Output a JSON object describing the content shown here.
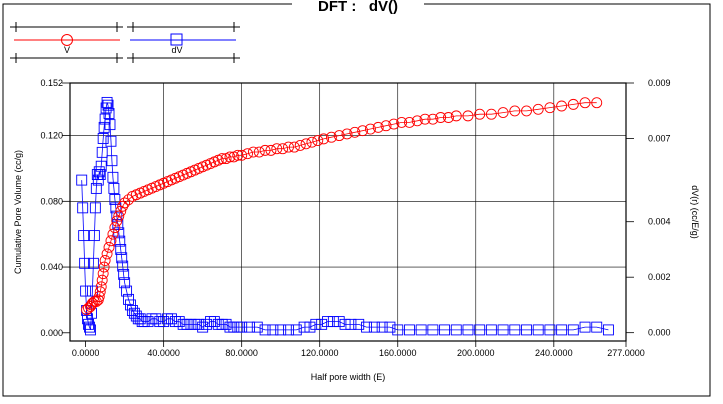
{
  "chart_data": {
    "type": "scatter",
    "title": "DFT :   dV()",
    "xlabel": "Half pore width (E)",
    "ylabel": "Cumulative Pore Volume (cc/g)",
    "y2label": "dV(r) (cc/E/g)",
    "xlim": [
      -8,
      277
    ],
    "ylim": [
      -0.005,
      0.152
    ],
    "y2lim": [
      -0.0003,
      0.009
    ],
    "x_ticks": [
      "0.0000",
      "40.0000",
      "80.0000",
      "120.0000",
      "160.0000",
      "200.0000",
      "240.0000",
      "277.0000"
    ],
    "x_tick_values": [
      0,
      40,
      80,
      120,
      160,
      200,
      240,
      277
    ],
    "y_ticks": [
      "0.000",
      "0.040",
      "0.080",
      "0.120",
      "0.152"
    ],
    "y_tick_values": [
      0,
      0.04,
      0.08,
      0.12,
      0.152
    ],
    "y2_ticks": [
      "0.000",
      "0.002",
      "0.004",
      "0.007",
      "0.009"
    ],
    "y2_tick_values": [
      0,
      0.002,
      0.004,
      0.007,
      0.009
    ],
    "grid": true,
    "legend_position": "top-left",
    "series": [
      {
        "name": "V",
        "color": "#ff0000",
        "marker": "circle",
        "axis": "left",
        "points": [
          [
            0.5,
            0.014
          ],
          [
            1.5,
            0.015
          ],
          [
            2.5,
            0.016
          ],
          [
            3,
            0.017
          ],
          [
            3.5,
            0.018
          ],
          [
            4.5,
            0.019
          ],
          [
            5.5,
            0.019
          ],
          [
            6.5,
            0.02
          ],
          [
            7,
            0.022
          ],
          [
            7.5,
            0.025
          ],
          [
            8,
            0.028
          ],
          [
            8.5,
            0.032
          ],
          [
            9,
            0.036
          ],
          [
            9.5,
            0.04
          ],
          [
            10,
            0.044
          ],
          [
            11,
            0.048
          ],
          [
            12,
            0.052
          ],
          [
            13,
            0.056
          ],
          [
            14,
            0.06
          ],
          [
            15,
            0.064
          ],
          [
            16,
            0.068
          ],
          [
            17,
            0.071
          ],
          [
            18,
            0.074
          ],
          [
            19,
            0.077
          ],
          [
            20,
            0.079
          ],
          [
            22,
            0.081
          ],
          [
            24,
            0.083
          ],
          [
            26,
            0.084
          ],
          [
            28,
            0.085
          ],
          [
            30,
            0.086
          ],
          [
            32,
            0.087
          ],
          [
            34,
            0.088
          ],
          [
            36,
            0.089
          ],
          [
            38,
            0.09
          ],
          [
            40,
            0.091
          ],
          [
            42,
            0.092
          ],
          [
            44,
            0.093
          ],
          [
            46,
            0.094
          ],
          [
            48,
            0.095
          ],
          [
            50,
            0.096
          ],
          [
            52,
            0.097
          ],
          [
            54,
            0.098
          ],
          [
            56,
            0.099
          ],
          [
            58,
            0.1
          ],
          [
            60,
            0.101
          ],
          [
            62,
            0.102
          ],
          [
            64,
            0.103
          ],
          [
            66,
            0.104
          ],
          [
            68,
            0.105
          ],
          [
            70,
            0.106
          ],
          [
            72,
            0.106
          ],
          [
            74,
            0.107
          ],
          [
            76,
            0.107
          ],
          [
            78,
            0.108
          ],
          [
            80,
            0.108
          ],
          [
            83,
            0.109
          ],
          [
            86,
            0.11
          ],
          [
            89,
            0.11
          ],
          [
            92,
            0.111
          ],
          [
            95,
            0.111
          ],
          [
            98,
            0.112
          ],
          [
            101,
            0.112
          ],
          [
            104,
            0.113
          ],
          [
            107,
            0.113
          ],
          [
            110,
            0.114
          ],
          [
            113,
            0.115
          ],
          [
            116,
            0.116
          ],
          [
            119,
            0.117
          ],
          [
            122,
            0.118
          ],
          [
            126,
            0.119
          ],
          [
            130,
            0.12
          ],
          [
            134,
            0.121
          ],
          [
            138,
            0.122
          ],
          [
            142,
            0.123
          ],
          [
            146,
            0.124
          ],
          [
            150,
            0.125
          ],
          [
            154,
            0.126
          ],
          [
            158,
            0.127
          ],
          [
            162,
            0.128
          ],
          [
            166,
            0.128
          ],
          [
            170,
            0.129
          ],
          [
            174,
            0.13
          ],
          [
            178,
            0.13
          ],
          [
            182,
            0.131
          ],
          [
            186,
            0.131
          ],
          [
            190,
            0.132
          ],
          [
            196,
            0.132
          ],
          [
            202,
            0.133
          ],
          [
            208,
            0.133
          ],
          [
            214,
            0.134
          ],
          [
            220,
            0.135
          ],
          [
            226,
            0.135
          ],
          [
            232,
            0.136
          ],
          [
            238,
            0.137
          ],
          [
            244,
            0.138
          ],
          [
            250,
            0.139
          ],
          [
            256,
            0.14
          ],
          [
            262,
            0.14
          ]
        ]
      },
      {
        "name": "dV",
        "color": "#0000ff",
        "marker": "square",
        "axis": "right",
        "points": [
          [
            -2,
            0.0055
          ],
          [
            -1.5,
            0.0045
          ],
          [
            -1,
            0.0035
          ],
          [
            -0.5,
            0.0025
          ],
          [
            0,
            0.0015
          ],
          [
            0.5,
            0.0008
          ],
          [
            1,
            0.0005
          ],
          [
            1.5,
            0.0003
          ],
          [
            2,
            0.0002
          ],
          [
            2.5,
            0.0001
          ],
          [
            3,
            0.0007
          ],
          [
            3.5,
            0.0015
          ],
          [
            4,
            0.0025
          ],
          [
            4.5,
            0.0035
          ],
          [
            5,
            0.0045
          ],
          [
            5.5,
            0.0052
          ],
          [
            6,
            0.0057
          ],
          [
            6.5,
            0.0055
          ],
          [
            7,
            0.0058
          ],
          [
            7.5,
            0.0057
          ],
          [
            8,
            0.006
          ],
          [
            8.5,
            0.0065
          ],
          [
            9,
            0.007
          ],
          [
            9.5,
            0.0074
          ],
          [
            10,
            0.0077
          ],
          [
            10.5,
            0.0081
          ],
          [
            11,
            0.0083
          ],
          [
            11.5,
            0.0082
          ],
          [
            12,
            0.0079
          ],
          [
            12.5,
            0.0075
          ],
          [
            13,
            0.0069
          ],
          [
            13.5,
            0.0062
          ],
          [
            14,
            0.0056
          ],
          [
            14.5,
            0.0052
          ],
          [
            15,
            0.0048
          ],
          [
            15.5,
            0.0045
          ],
          [
            16,
            0.0042
          ],
          [
            16.5,
            0.0039
          ],
          [
            17,
            0.0036
          ],
          [
            17.5,
            0.0033
          ],
          [
            18,
            0.003
          ],
          [
            18.5,
            0.0027
          ],
          [
            19,
            0.0024
          ],
          [
            19.5,
            0.0021
          ],
          [
            20,
            0.0018
          ],
          [
            21,
            0.0015
          ],
          [
            22,
            0.0012
          ],
          [
            23,
            0.001
          ],
          [
            24,
            0.0008
          ],
          [
            25,
            0.0007
          ],
          [
            26,
            0.0006
          ],
          [
            27,
            0.0005
          ],
          [
            28,
            0.0005
          ],
          [
            29,
            0.0004
          ],
          [
            30,
            0.0004
          ],
          [
            32,
            0.0004
          ],
          [
            34,
            0.0005
          ],
          [
            36,
            0.0005
          ],
          [
            38,
            0.0004
          ],
          [
            40,
            0.0004
          ],
          [
            42,
            0.0005
          ],
          [
            44,
            0.0005
          ],
          [
            46,
            0.0004
          ],
          [
            48,
            0.0004
          ],
          [
            50,
            0.0003
          ],
          [
            52,
            0.0003
          ],
          [
            54,
            0.0003
          ],
          [
            56,
            0.0003
          ],
          [
            58,
            0.0003
          ],
          [
            60,
            0.0002
          ],
          [
            62,
            0.0003
          ],
          [
            64,
            0.0004
          ],
          [
            66,
            0.0004
          ],
          [
            68,
            0.0003
          ],
          [
            70,
            0.0003
          ],
          [
            72,
            0.0003
          ],
          [
            74,
            0.0002
          ],
          [
            76,
            0.0002
          ],
          [
            78,
            0.0002
          ],
          [
            80,
            0.0002
          ],
          [
            84,
            0.0002
          ],
          [
            88,
            0.0002
          ],
          [
            92,
            0.0001
          ],
          [
            96,
            0.0001
          ],
          [
            100,
            0.0001
          ],
          [
            104,
            0.0001
          ],
          [
            108,
            0.0001
          ],
          [
            112,
            0.0002
          ],
          [
            115,
            0.0002
          ],
          [
            118,
            0.0003
          ],
          [
            121,
            0.0003
          ],
          [
            124,
            0.0004
          ],
          [
            127,
            0.0004
          ],
          [
            130,
            0.0004
          ],
          [
            133,
            0.0003
          ],
          [
            136,
            0.0003
          ],
          [
            140,
            0.0003
          ],
          [
            144,
            0.0002
          ],
          [
            148,
            0.0002
          ],
          [
            152,
            0.0002
          ],
          [
            156,
            0.0002
          ],
          [
            160,
            0.0001
          ],
          [
            166,
            0.0001
          ],
          [
            172,
            0.0001
          ],
          [
            178,
            0.0001
          ],
          [
            184,
            0.0001
          ],
          [
            190,
            0.0001
          ],
          [
            196,
            0.0001
          ],
          [
            202,
            0.0001
          ],
          [
            208,
            0.0001
          ],
          [
            214,
            0.0001
          ],
          [
            220,
            0.0001
          ],
          [
            226,
            0.0001
          ],
          [
            232,
            0.0001
          ],
          [
            238,
            0.0001
          ],
          [
            244,
            0.0001
          ],
          [
            250,
            0.0001
          ],
          [
            256,
            0.0002
          ],
          [
            262,
            0.0002
          ],
          [
            268,
            0.0001
          ]
        ]
      }
    ]
  },
  "legend": {
    "items": [
      {
        "label": "V",
        "color": "#ff0000",
        "marker": "circle"
      },
      {
        "label": "dV",
        "color": "#0000ff",
        "marker": "square"
      }
    ]
  }
}
